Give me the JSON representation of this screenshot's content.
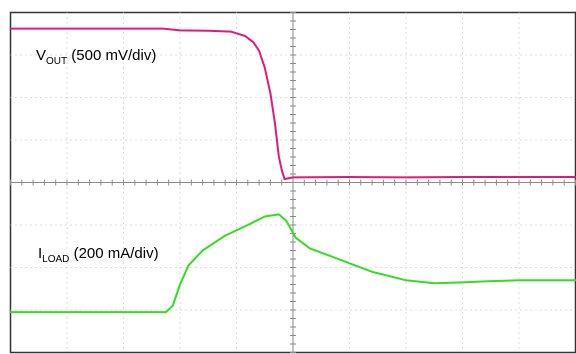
{
  "chart_data": {
    "type": "line",
    "title": "",
    "xlabel": "",
    "ylabel": "",
    "grid": true,
    "divisions": {
      "x": 10,
      "y": 8
    },
    "xlim": [
      0,
      10
    ],
    "ylim": [
      0,
      8
    ],
    "series": [
      {
        "name": "VOUT (500 mV/div)",
        "label_main": "V",
        "label_sub": "OUT",
        "label_rest": " (500 mV/div)",
        "color": "#e0197d",
        "points": [
          [
            0.0,
            7.62
          ],
          [
            2.7,
            7.62
          ],
          [
            3.0,
            7.58
          ],
          [
            3.5,
            7.57
          ],
          [
            3.9,
            7.55
          ],
          [
            4.15,
            7.45
          ],
          [
            4.3,
            7.3
          ],
          [
            4.4,
            7.1
          ],
          [
            4.5,
            6.7
          ],
          [
            4.6,
            6.1
          ],
          [
            4.68,
            5.4
          ],
          [
            4.75,
            4.6
          ],
          [
            4.8,
            4.3
          ],
          [
            4.85,
            4.08
          ],
          [
            5.0,
            4.12
          ],
          [
            6.0,
            4.13
          ],
          [
            7.0,
            4.12
          ],
          [
            8.0,
            4.13
          ],
          [
            9.0,
            4.13
          ],
          [
            10.0,
            4.13
          ]
        ]
      },
      {
        "name": "ILOAD (200 mA/div)",
        "label_main": "I",
        "label_sub": "LOAD",
        "label_rest": " (200 mA/div)",
        "color": "#33dd22",
        "points": [
          [
            0.0,
            0.95
          ],
          [
            2.75,
            0.95
          ],
          [
            2.87,
            1.1
          ],
          [
            3.0,
            1.6
          ],
          [
            3.15,
            2.05
          ],
          [
            3.4,
            2.4
          ],
          [
            3.8,
            2.75
          ],
          [
            4.2,
            3.0
          ],
          [
            4.5,
            3.2
          ],
          [
            4.75,
            3.25
          ],
          [
            4.88,
            3.1
          ],
          [
            5.05,
            2.7
          ],
          [
            5.3,
            2.45
          ],
          [
            5.8,
            2.2
          ],
          [
            6.4,
            1.9
          ],
          [
            7.0,
            1.7
          ],
          [
            7.5,
            1.63
          ],
          [
            8.0,
            1.65
          ],
          [
            8.5,
            1.68
          ],
          [
            9.0,
            1.7
          ],
          [
            9.5,
            1.7
          ],
          [
            10.0,
            1.7
          ]
        ]
      }
    ]
  }
}
